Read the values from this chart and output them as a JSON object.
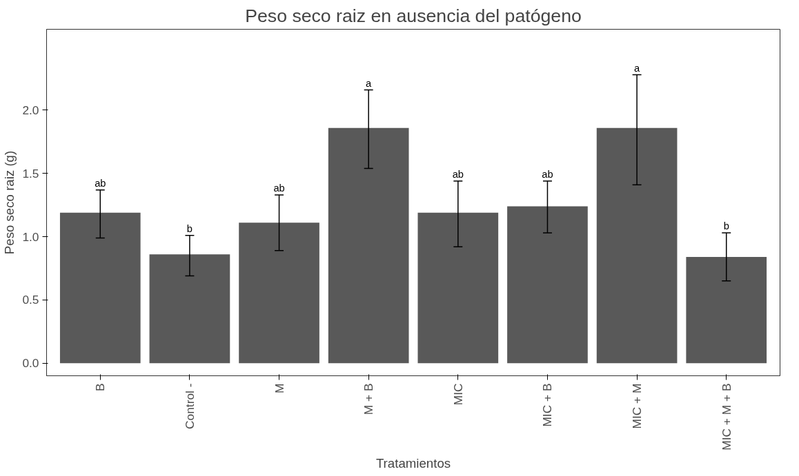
{
  "chart_data": {
    "type": "bar",
    "title": "Peso seco raiz en ausencia del patógeno",
    "xlabel": "Tratamientos",
    "ylabel": "Peso seco raiz (g)",
    "categories": [
      "B",
      "Control -",
      "M",
      "M + B",
      "MIC",
      "MIC + B",
      "MIC + M",
      "MIC + M + B"
    ],
    "values": [
      1.19,
      0.86,
      1.11,
      1.86,
      1.19,
      1.24,
      1.86,
      0.84
    ],
    "errors": [
      [
        0.99,
        1.37
      ],
      [
        0.69,
        1.01
      ],
      [
        0.89,
        1.33
      ],
      [
        1.54,
        2.16
      ],
      [
        0.92,
        1.44
      ],
      [
        1.03,
        1.44
      ],
      [
        1.41,
        2.28
      ],
      [
        0.65,
        1.03
      ]
    ],
    "color": "#595959",
    "ylim": [
      -0.1,
      2.64
    ],
    "yticks": [
      {
        "value": 0,
        "label": "0.0"
      },
      {
        "value": 0.5,
        "label": "0.5"
      },
      {
        "value": 1,
        "label": "1.0"
      },
      {
        "value": 1.5,
        "label": "1.5"
      },
      {
        "value": 2,
        "label": "2.0"
      }
    ],
    "grid": false,
    "annotations": [
      {
        "text": "ab",
        "x": "B",
        "y": 1.37
      },
      {
        "text": "b",
        "x": "Control -",
        "y": 1.01
      },
      {
        "text": "ab",
        "x": "M",
        "y": 1.33
      },
      {
        "text": "a",
        "x": "M + B",
        "y": 2.16
      },
      {
        "text": "ab",
        "x": "MIC",
        "y": 1.44
      },
      {
        "text": "ab",
        "x": "MIC + B",
        "y": 1.44
      },
      {
        "text": "a",
        "x": "MIC + M",
        "y": 2.28
      },
      {
        "text": "b",
        "x": "MIC + M + B",
        "y": 1.03
      }
    ]
  }
}
